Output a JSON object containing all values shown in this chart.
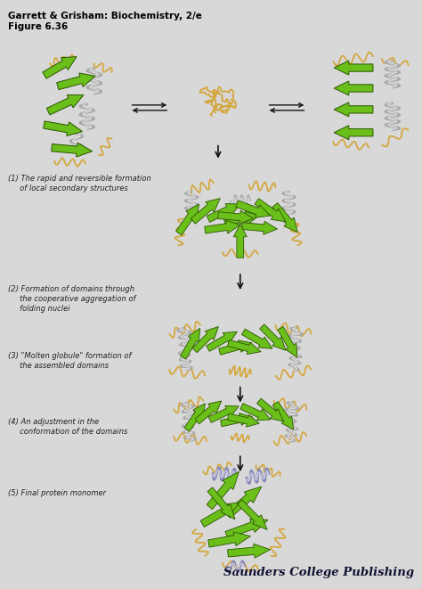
{
  "title_line1": "Garrett & Grisham: Biochemistry, 2/e",
  "title_line2": "Figure 6.36",
  "background_color": "#d8d8d8",
  "publisher": "Saunders College Publishing",
  "green": "#6abf1a",
  "gold": "#d4a840",
  "gray_helix": "#aaaaaa",
  "purple_helix": "#8888bb",
  "black": "#111111",
  "text_color": "#222222",
  "title_fontsize": 7.5,
  "label_fontsize": 6.0,
  "publisher_fontsize": 9.5
}
